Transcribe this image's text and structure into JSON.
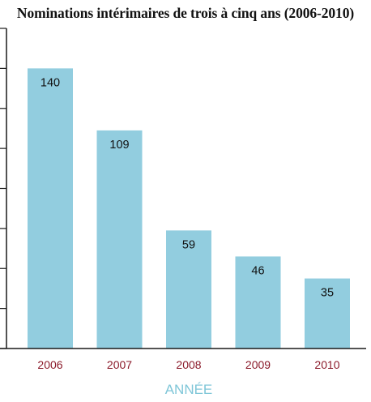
{
  "chart_data": {
    "type": "bar",
    "title": "Nominations intérimaires de trois à cinq ans (2006-2010)",
    "xlabel": "ANNÉE",
    "ylabel": "",
    "categories": [
      "2006",
      "2007",
      "2008",
      "2009",
      "2010"
    ],
    "values": [
      140,
      109,
      59,
      46,
      35
    ],
    "ylim": [
      0,
      160
    ],
    "ytick_step": 20,
    "ytick_labels_shown": false,
    "grid": false,
    "legend": "none"
  },
  "colors": {
    "bar": "#92cddf",
    "axis": "#1a1a1a",
    "category_label": "#8b1a2a",
    "x_title": "#7fc6d8"
  }
}
